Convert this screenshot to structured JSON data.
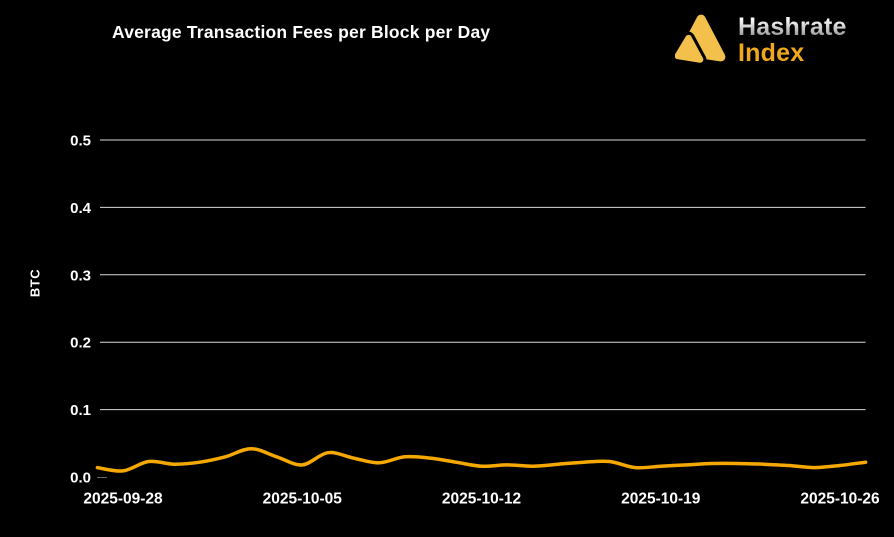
{
  "page": {
    "background": "#000000"
  },
  "header": {
    "title": "Average Transaction Fees per Block per Day",
    "logo": {
      "line1": "Hashrate",
      "line2": "Index",
      "icon": "hashrate-index-triangles-icon",
      "icon_color": "#F3C14B",
      "line2_color": "#F0A81C"
    }
  },
  "chart_data": {
    "type": "line",
    "title": "Average Transaction Fees per Block per Day",
    "xlabel": "",
    "ylabel": "BTC",
    "ylim": [
      0.0,
      0.5
    ],
    "grid": true,
    "legend_position": "none",
    "line_color": "#F5A800",
    "grid_color": "#D9D9D9",
    "tick_color": "#FFFFFF",
    "x": [
      "2025-09-27",
      "2025-09-28",
      "2025-09-29",
      "2025-09-30",
      "2025-10-01",
      "2025-10-02",
      "2025-10-03",
      "2025-10-04",
      "2025-10-05",
      "2025-10-06",
      "2025-10-07",
      "2025-10-08",
      "2025-10-09",
      "2025-10-10",
      "2025-10-11",
      "2025-10-12",
      "2025-10-13",
      "2025-10-14",
      "2025-10-15",
      "2025-10-16",
      "2025-10-17",
      "2025-10-18",
      "2025-10-19",
      "2025-10-20",
      "2025-10-21",
      "2025-10-22",
      "2025-10-23",
      "2025-10-24",
      "2025-10-25",
      "2025-10-26",
      "2025-10-27"
    ],
    "values": [
      0.014,
      0.009,
      0.023,
      0.019,
      0.022,
      0.03,
      0.042,
      0.03,
      0.018,
      0.036,
      0.028,
      0.021,
      0.03,
      0.028,
      0.022,
      0.016,
      0.018,
      0.016,
      0.019,
      0.022,
      0.023,
      0.014,
      0.016,
      0.018,
      0.02,
      0.02,
      0.019,
      0.017,
      0.014,
      0.017,
      0.022
    ],
    "ytick_labels": [
      "0.0",
      "0.1",
      "0.2",
      "0.3",
      "0.4",
      "0.5"
    ],
    "yticks": [
      0.0,
      0.1,
      0.2,
      0.3,
      0.4,
      0.5
    ],
    "xtick_labels": [
      "2025-09-28",
      "2025-10-05",
      "2025-10-12",
      "2025-10-19",
      "2025-10-26"
    ]
  }
}
